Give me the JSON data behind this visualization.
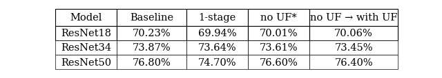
{
  "col_headers": [
    "Model",
    "Baseline",
    "1-stage",
    "no UF*",
    "no UF → with UF"
  ],
  "rows": [
    [
      "ResNet18",
      "70.23%",
      "69.94%",
      "70.01%",
      "70.06%"
    ],
    [
      "ResNet34",
      "73.87%",
      "73.64%",
      "73.61%",
      "73.45%"
    ],
    [
      "ResNet50",
      "76.80%",
      "74.70%",
      "76.60%",
      "76.40%"
    ]
  ],
  "background_color": "#ffffff",
  "line_color": "#000000",
  "font_size": 10.5,
  "figsize": [
    6.4,
    1.15
  ],
  "dpi": 100
}
